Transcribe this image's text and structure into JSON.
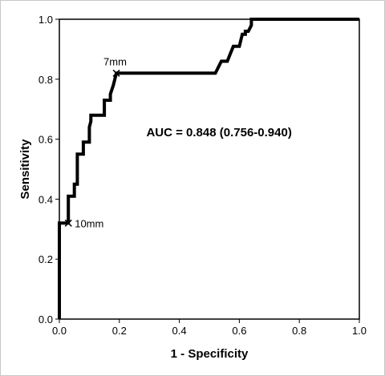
{
  "chart_data": {
    "type": "line",
    "xlabel": "1 - Specificity",
    "ylabel": "Sensitivity",
    "xlim": [
      0,
      1
    ],
    "ylim": [
      0,
      1
    ],
    "xticks": [
      "0.0",
      "0.2",
      "0.4",
      "0.6",
      "0.8",
      "1.0"
    ],
    "yticks": [
      "0.0",
      "0.2",
      "0.4",
      "0.6",
      "0.8",
      "1.0"
    ],
    "grid": false,
    "series": [
      {
        "x": [
          0.0,
          0.0,
          0.0,
          0.03,
          0.03,
          0.05,
          0.05,
          0.06,
          0.06,
          0.08,
          0.08,
          0.1,
          0.1,
          0.105,
          0.105,
          0.15,
          0.15,
          0.17,
          0.17,
          0.18,
          0.19,
          0.52,
          0.54,
          0.56,
          0.58,
          0.6,
          0.61,
          0.62,
          0.62,
          0.63,
          0.64,
          0.64,
          1.0
        ],
        "y": [
          0.0,
          0.32,
          0.32,
          0.32,
          0.41,
          0.41,
          0.45,
          0.45,
          0.55,
          0.55,
          0.59,
          0.59,
          0.64,
          0.66,
          0.68,
          0.68,
          0.73,
          0.73,
          0.75,
          0.78,
          0.82,
          0.82,
          0.86,
          0.86,
          0.91,
          0.91,
          0.95,
          0.95,
          0.96,
          0.96,
          0.98,
          1.0,
          1.0
        ]
      }
    ],
    "markers": [
      {
        "x": 0.19,
        "y": 0.82,
        "label": "7mm"
      },
      {
        "x": 0.03,
        "y": 0.32,
        "label": "10mm"
      }
    ],
    "annotation": "AUC = 0.848 (0.756-0.940)"
  }
}
